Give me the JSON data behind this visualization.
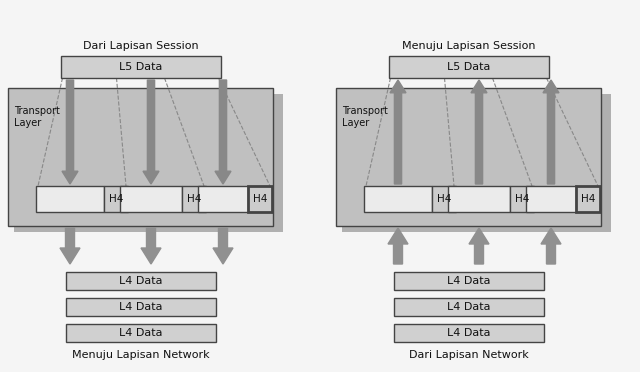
{
  "fig_bg": "#f5f5f5",
  "light_gray": "#c0c0c0",
  "shadow_gray": "#b0b0b0",
  "box_fill": "#d0d0d0",
  "box_edge": "#444444",
  "seg_fill": "#e0e0e0",
  "h4_fill": "#cccccc",
  "arrow_color": "#888888",
  "arrow_dark": "#777777",
  "text_color": "#111111",
  "dash_color": "#888888",
  "left_title": "Dari Lapisan Session",
  "right_title": "Menuju Lapisan Session",
  "left_bottom": "Menuju Lapisan Network",
  "right_bottom": "Dari Lapisan Network",
  "transport_label": "Transport\nLayer",
  "l5_label": "L5 Data",
  "l4_label": "L4 Data",
  "h4_label": "H4"
}
